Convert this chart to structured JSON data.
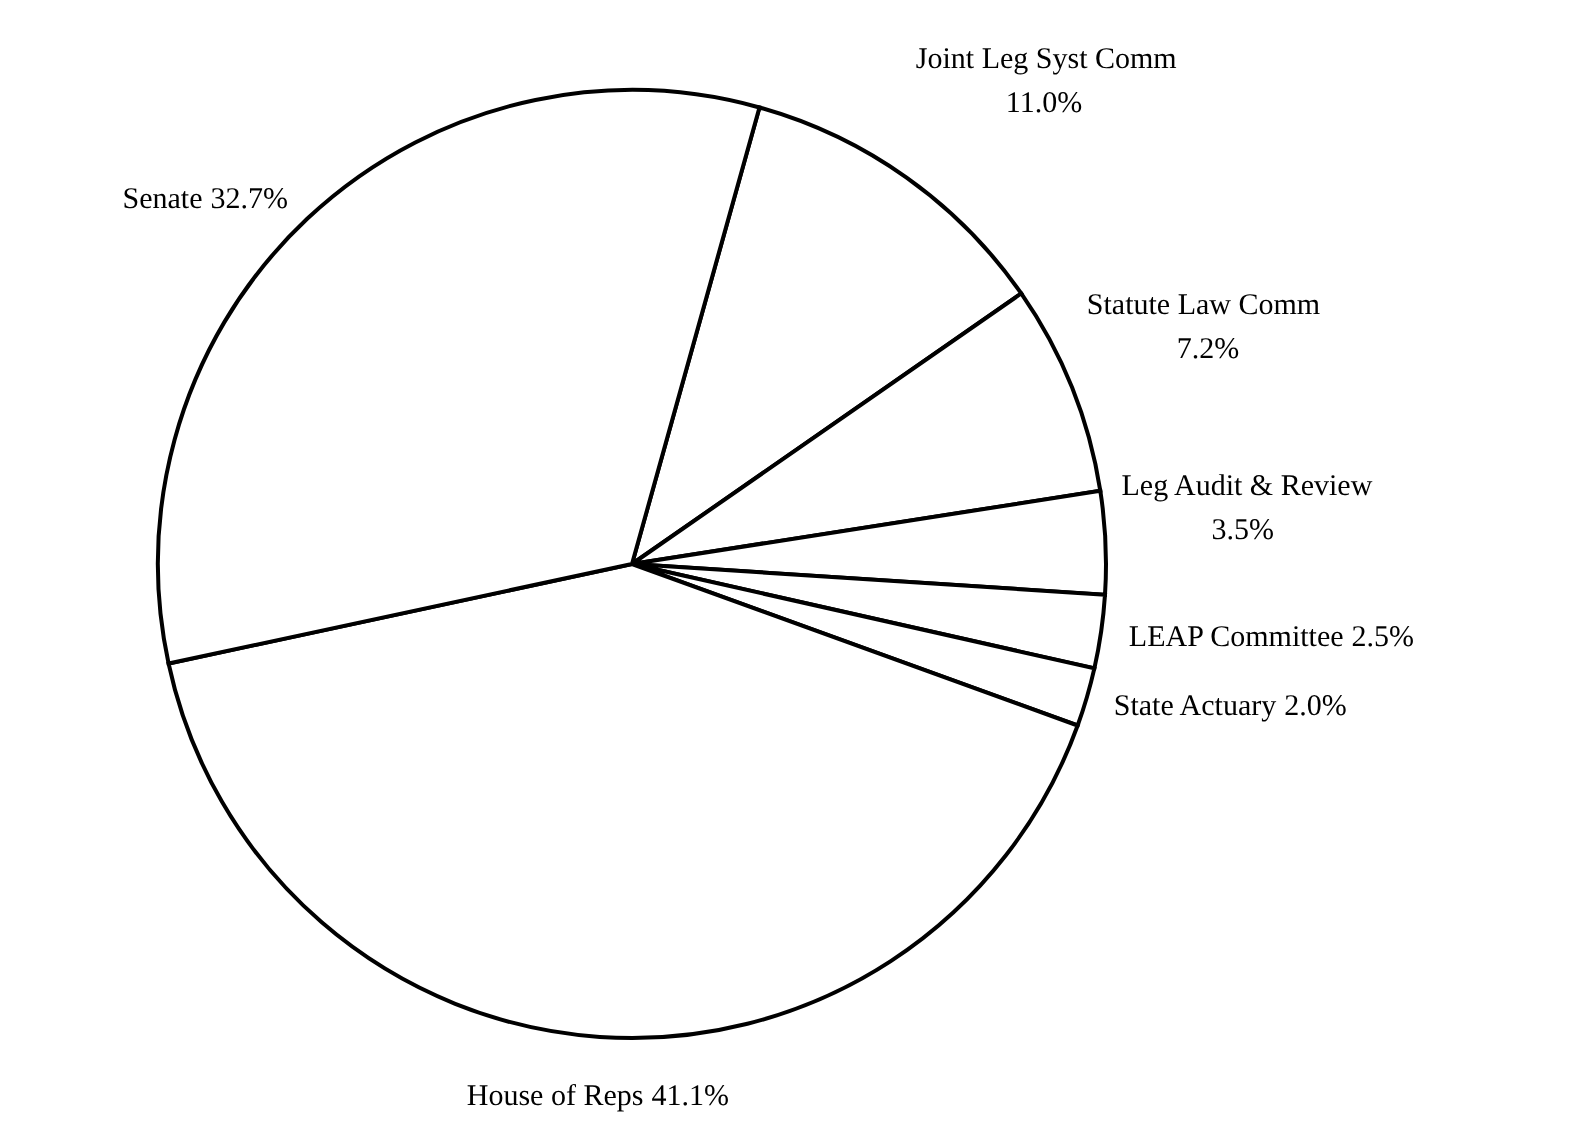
{
  "chart_data": {
    "type": "pie",
    "categories": [
      "Joint Leg Syst Comm",
      "Statute Law Comm",
      "Leg Audit & Review",
      "LEAP Committee",
      "State Actuary",
      "House of Reps",
      "Senate"
    ],
    "values": [
      11.0,
      7.2,
      3.5,
      2.5,
      2.0,
      41.1,
      32.7
    ],
    "value_labels": [
      "11.0%",
      "7.2%",
      "3.5%",
      "2.5%",
      "2.0%",
      "41.1%",
      "32.7%"
    ],
    "colors": [
      "#ffffff",
      "#ffffff",
      "#ffffff",
      "#ffffff",
      "#ffffff",
      "#ffffff",
      "#ffffff"
    ]
  }
}
